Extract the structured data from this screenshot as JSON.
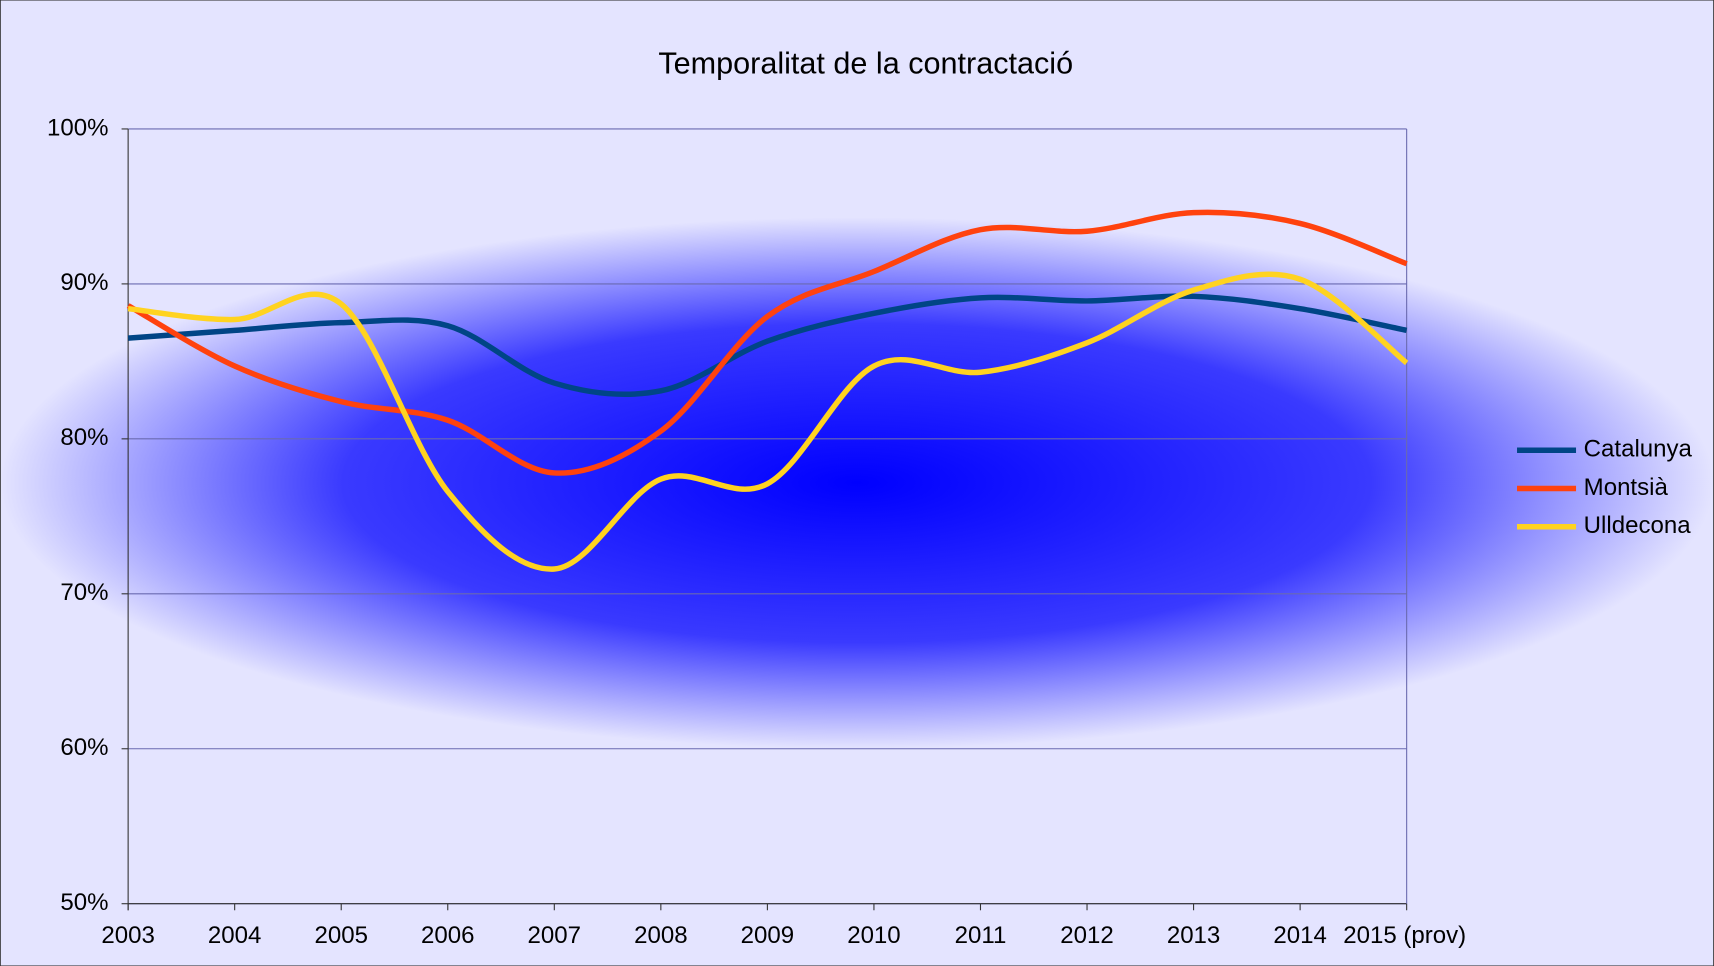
{
  "chart_data": {
    "type": "line",
    "title": "Temporalitat de la contractació",
    "categories": [
      "2003",
      "2004",
      "2005",
      "2006",
      "2007",
      "2008",
      "2009",
      "2010",
      "2011",
      "2012",
      "2013",
      "2014",
      "2015 (prov)"
    ],
    "series": [
      {
        "name": "Catalunya",
        "color": "#004586",
        "values": [
          86.5,
          87.0,
          87.5,
          87.3,
          83.6,
          83.1,
          86.3,
          88.1,
          89.1,
          88.9,
          89.2,
          88.4,
          87.0
        ]
      },
      {
        "name": "Montsià",
        "color": "#ff420e",
        "values": [
          88.6,
          84.7,
          82.4,
          81.2,
          77.8,
          80.5,
          87.9,
          90.8,
          93.5,
          93.4,
          94.6,
          93.9,
          91.3
        ]
      },
      {
        "name": "Ulldecona",
        "color": "#ffd320",
        "values": [
          88.4,
          87.7,
          88.7,
          76.6,
          71.6,
          77.4,
          77.1,
          84.7,
          84.3,
          86.2,
          89.6,
          90.3,
          84.9
        ]
      }
    ],
    "ylim": [
      50,
      100
    ],
    "yticks": [
      {
        "value": 50,
        "label": "50%"
      },
      {
        "value": 60,
        "label": "60%"
      },
      {
        "value": 70,
        "label": "70%"
      },
      {
        "value": 80,
        "label": "80%"
      },
      {
        "value": 90,
        "label": "90%"
      },
      {
        "value": 100,
        "label": "100%"
      }
    ],
    "grid": true,
    "smooth": true,
    "legend": "right"
  }
}
